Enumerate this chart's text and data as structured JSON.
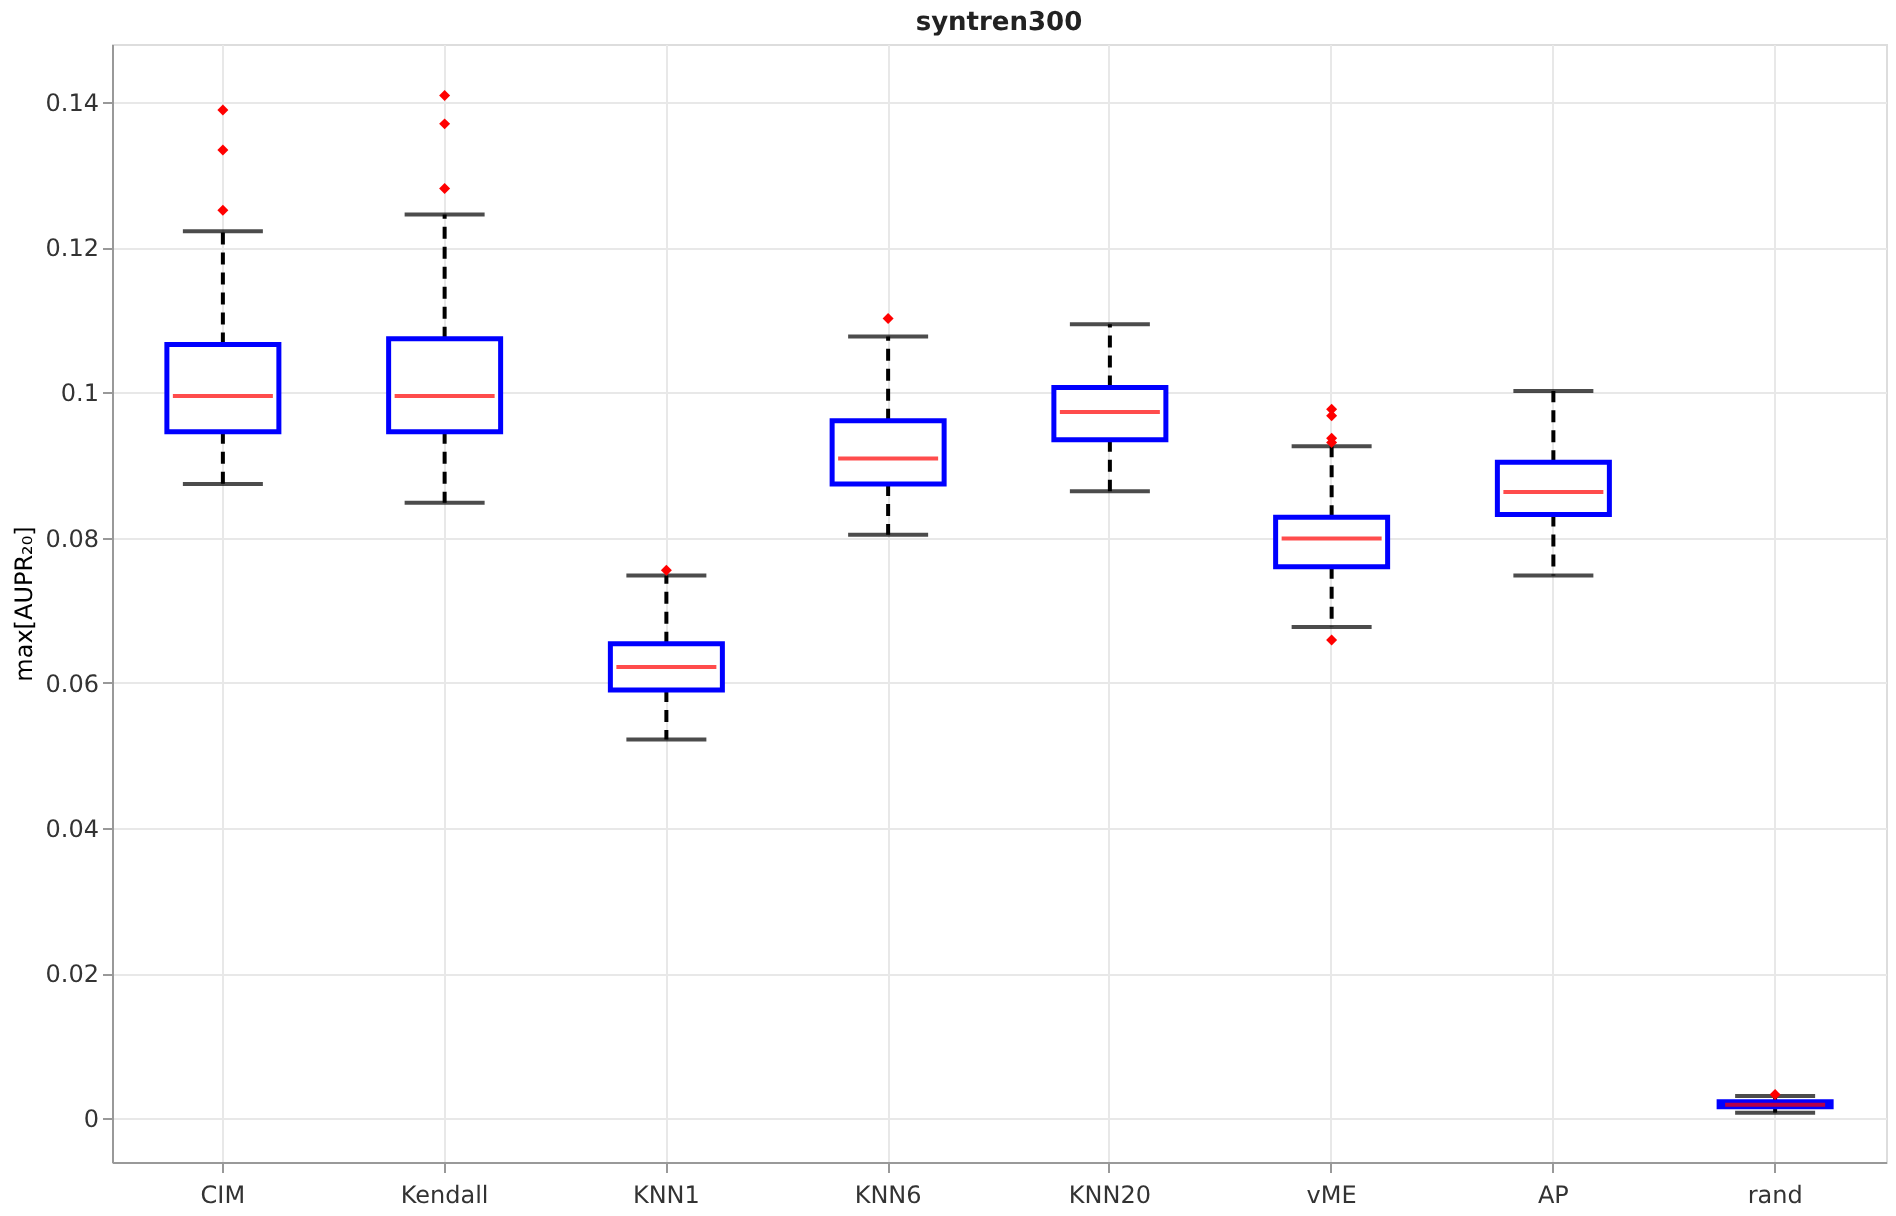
{
  "chart_data": {
    "type": "box",
    "title": "syntren300",
    "ylabel": "max[AUPR₂₀]",
    "categories": [
      "CIM",
      "Kendall",
      "KNN1",
      "KNN6",
      "KNN20",
      "vME",
      "AP",
      "rand"
    ],
    "series": [
      {
        "color": "#0000ff",
        "boxes": [
          {
            "low": 0.0874,
            "q1": 0.0946,
            "median": 0.0995,
            "q3": 0.1066,
            "high": 0.1222,
            "outliers": [
              0.1389,
              0.1334,
              0.1251
            ]
          },
          {
            "low": 0.0848,
            "q1": 0.0946,
            "median": 0.0995,
            "q3": 0.1074,
            "high": 0.1245,
            "outliers": [
              0.1409,
              0.137,
              0.1281
            ]
          },
          {
            "low": 0.0522,
            "q1": 0.059,
            "median": 0.0622,
            "q3": 0.0654,
            "high": 0.0748,
            "outliers": [
              0.0755
            ]
          },
          {
            "low": 0.0804,
            "q1": 0.0874,
            "median": 0.0909,
            "q3": 0.0961,
            "high": 0.1077,
            "outliers": [
              0.1102
            ]
          },
          {
            "low": 0.0864,
            "q1": 0.0935,
            "median": 0.0973,
            "q3": 0.1007,
            "high": 0.1094
          },
          {
            "low": 0.0677,
            "q1": 0.076,
            "median": 0.0799,
            "q3": 0.0828,
            "high": 0.0926,
            "outliers": [
              0.0977,
              0.0968,
              0.0937,
              0.0931,
              0.0659
            ]
          },
          {
            "low": 0.0748,
            "q1": 0.0832,
            "median": 0.0863,
            "q3": 0.0904,
            "high": 0.1002
          },
          {
            "low": 0.0008,
            "q1": 0.0016,
            "median": 0.0019,
            "q3": 0.0023,
            "high": 0.0031,
            "outliers": [
              0.0033
            ]
          }
        ]
      }
    ],
    "ylim": [
      -0.006,
      0.148
    ],
    "yticks": [
      0,
      0.02,
      0.04,
      0.06,
      0.08,
      0.1,
      0.12,
      0.14
    ],
    "grid": true
  }
}
